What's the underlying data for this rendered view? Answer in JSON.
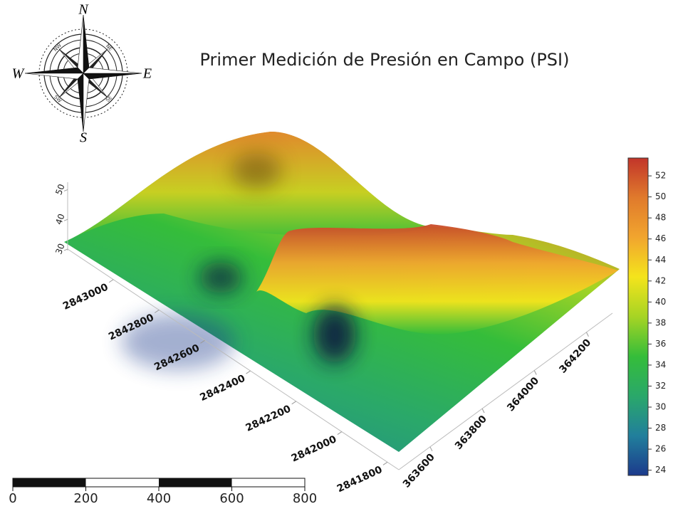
{
  "chart_data": {
    "type": "surface",
    "title": "Primer Medición de Presión en Campo (PSI)",
    "compass": {
      "north": "N",
      "east": "E",
      "south": "S",
      "west": "W",
      "ring": [
        "NW",
        "NE",
        "SW",
        "SE"
      ]
    },
    "xlim": [
      363480,
      364300
    ],
    "xticks": [
      363600,
      363800,
      364000,
      364200
    ],
    "ylim": [
      2843200,
      2841750
    ],
    "yticks": [
      2843000,
      2842800,
      2842600,
      2842400,
      2842200,
      2842000,
      2841800
    ],
    "zlim": [
      29.5,
      52.5
    ],
    "zticks": [
      30,
      40,
      50
    ],
    "colorbar": {
      "lim": [
        23.5,
        53.7
      ],
      "ticks": [
        24,
        26,
        28,
        30,
        32,
        34,
        36,
        38,
        40,
        42,
        44,
        46,
        48,
        50,
        52
      ],
      "colors": [
        "#1c3a8c",
        "#217f9c",
        "#2aa86a",
        "#35bd3a",
        "#a6d424",
        "#f4e41c",
        "#f1a52e",
        "#e07a2c",
        "#c2352a"
      ]
    },
    "scale_bar": {
      "lim": [
        0,
        800
      ],
      "ticks": [
        0,
        200,
        400,
        600,
        800
      ]
    }
  }
}
